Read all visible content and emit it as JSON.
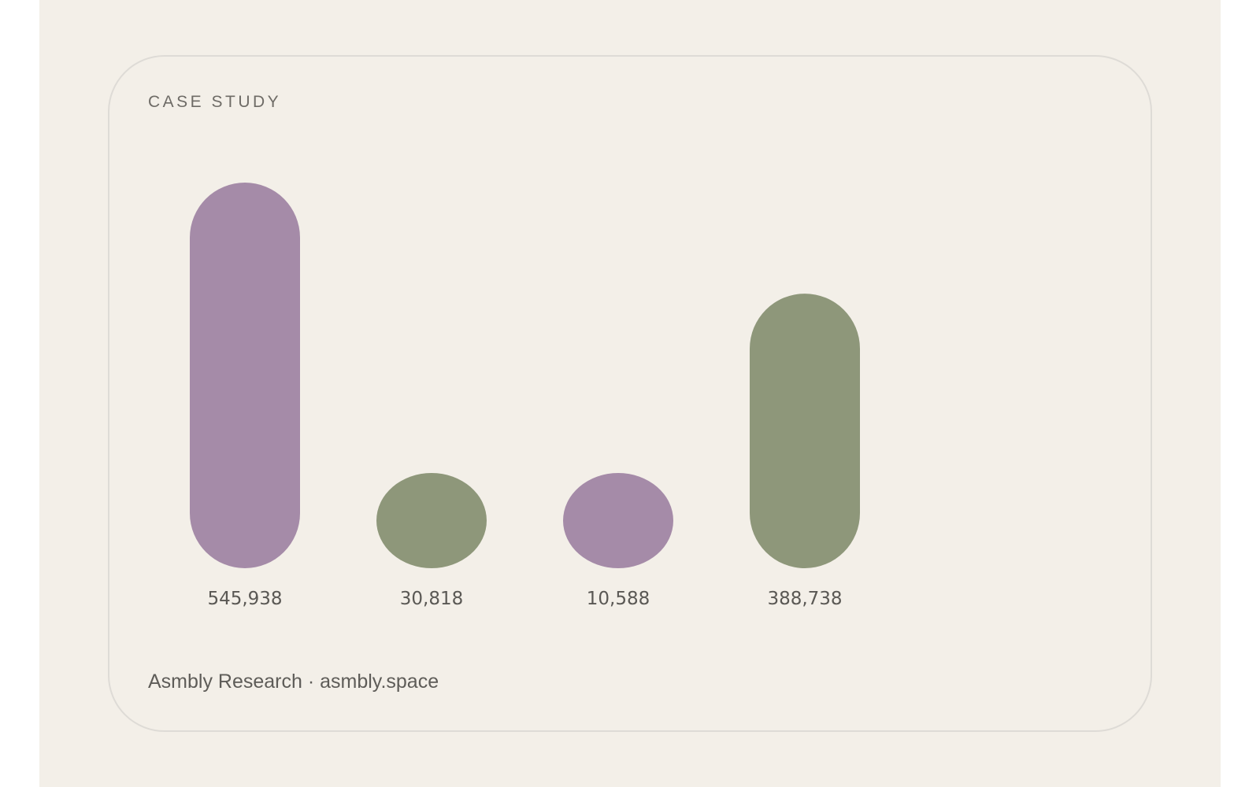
{
  "card": {
    "eyebrow": "CASE STUDY",
    "footer": "Asmbly Research · asmbly.space"
  },
  "colors": {
    "background": "#f3efe8",
    "purple": "#a58ba8",
    "green": "#8e977a",
    "label": "#5a5854"
  },
  "chart_data": {
    "type": "bar",
    "categories": [
      "",
      "",
      "",
      ""
    ],
    "values": [
      545938,
      30818,
      10588,
      388738
    ],
    "value_labels": [
      "545,938",
      "30,818",
      "10,588",
      "388,738"
    ],
    "bar_colors": [
      "#a58ba8",
      "#8e977a",
      "#a58ba8",
      "#8e977a"
    ],
    "title": "",
    "xlabel": "",
    "ylabel": "",
    "grid": false,
    "legend": "none"
  }
}
